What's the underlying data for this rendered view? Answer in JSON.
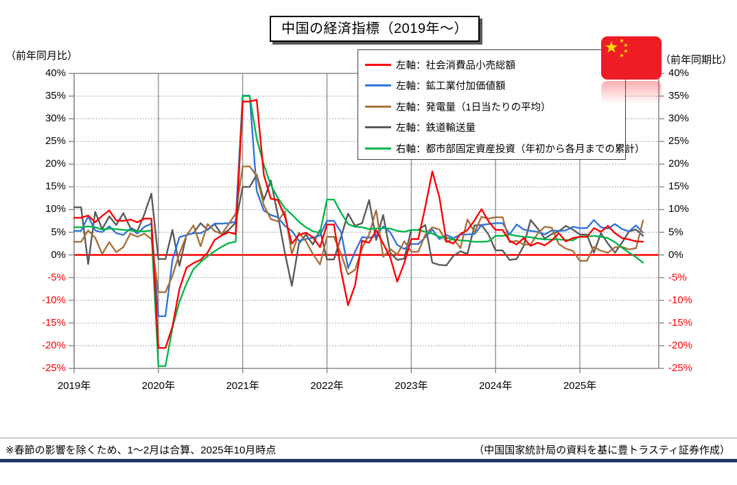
{
  "title": "中国の経済指標（2019年～）",
  "left_axis_caption": "（前年同月比）",
  "right_axis_caption": "（前年同期比）",
  "footnote_left": "※春節の影響を除くため、1～2月は合算、2025年10月時点",
  "footnote_right": "（中国国家統計局の資料を基に豊トラスティ証券作成）",
  "colors": {
    "zero_line": "#FF0000",
    "negative_tick_label": "#FF0000",
    "grid": "#888888",
    "frame": "#7F7F7F",
    "footer_accent": "#1F3864",
    "flag_red": "#EE1C25",
    "flag_star": "#FFDE00"
  },
  "legend": {
    "items": [
      {
        "label": "左軸：社会消費品小売総額",
        "color": "#FF0000"
      },
      {
        "label": "左軸：鉱工業付加価値額",
        "color": "#2F75DB"
      },
      {
        "label": "左軸：発電量（1日当たりの平均）",
        "color": "#A8703C"
      },
      {
        "label": "左軸：鉄道輸送量",
        "color": "#5A5A5A"
      },
      {
        "label": "右軸：都市部固定資産投資（年初から各月までの累計）",
        "color": "#00B64A"
      }
    ]
  },
  "chart_data": {
    "type": "line",
    "title": "中国の経済指標（2019年～）",
    "x_tick_labels": [
      "2019年",
      "2020年",
      "2021年",
      "2022年",
      "2023年",
      "2024年",
      "2025年"
    ],
    "y_tick_labels": [
      "40%",
      "35%",
      "30%",
      "25%",
      "20%",
      "15%",
      "10%",
      "5%",
      "0%",
      "-5%",
      "-10%",
      "-15%",
      "-20%",
      "-25%"
    ],
    "ylim": [
      -25,
      40
    ],
    "y_step": 5,
    "months_per_year": 12,
    "jan_feb_combined": true,
    "x_range_note": "monthly 2019-01 through 2025-10, Jan=Feb plotted with combined value",
    "grid": "horizontal dotted, vertical solid per year, zero line solid red",
    "legend_position": "top-right box",
    "series": [
      {
        "name": "社会消費品小売総額",
        "axis": "left",
        "color": "#FF0000",
        "values": [
          8.2,
          8.2,
          8.7,
          7.2,
          8.6,
          9.8,
          7.6,
          7.5,
          7.8,
          7.2,
          8.0,
          8.0,
          -20.5,
          -20.5,
          -15.8,
          -7.5,
          -2.8,
          -1.8,
          -1.1,
          0.5,
          3.3,
          4.3,
          5.0,
          4.6,
          33.8,
          33.8,
          34.2,
          17.7,
          12.4,
          12.1,
          8.5,
          2.5,
          4.4,
          4.9,
          3.9,
          1.7,
          6.7,
          6.7,
          -3.5,
          -11.1,
          -6.7,
          3.1,
          2.7,
          5.4,
          2.5,
          -0.5,
          -5.9,
          -1.8,
          3.5,
          3.5,
          10.6,
          18.4,
          12.7,
          3.1,
          2.5,
          4.6,
          5.5,
          7.6,
          10.1,
          7.4,
          5.5,
          5.5,
          3.1,
          2.3,
          3.7,
          2.0,
          2.7,
          2.1,
          3.2,
          4.8,
          3.0,
          3.7,
          4.0,
          4.0,
          5.9,
          5.1,
          6.4,
          4.8,
          3.7,
          3.4,
          3.0,
          2.9
        ]
      },
      {
        "name": "鉱工業付加価値額",
        "axis": "left",
        "color": "#2F75DB",
        "values": [
          5.3,
          5.3,
          8.5,
          5.4,
          5.0,
          6.3,
          4.8,
          4.4,
          5.8,
          4.7,
          6.2,
          6.9,
          -13.5,
          -13.5,
          -1.1,
          3.9,
          4.4,
          4.8,
          4.8,
          5.6,
          6.9,
          6.9,
          7.0,
          7.3,
          35.1,
          35.1,
          14.1,
          9.8,
          8.8,
          8.3,
          6.4,
          5.3,
          3.1,
          3.5,
          3.8,
          4.3,
          7.5,
          7.5,
          5.0,
          -2.9,
          0.7,
          3.9,
          3.8,
          4.2,
          6.3,
          5.0,
          2.2,
          1.3,
          2.4,
          2.4,
          3.9,
          5.6,
          3.5,
          4.4,
          3.7,
          4.5,
          4.5,
          4.6,
          6.6,
          6.8,
          7.0,
          7.0,
          4.5,
          6.7,
          5.6,
          5.3,
          5.1,
          4.5,
          5.4,
          5.3,
          5.4,
          6.2,
          5.9,
          5.9,
          7.7,
          6.1,
          5.8,
          6.8,
          5.7,
          5.2,
          6.5,
          4.9
        ]
      },
      {
        "name": "発電量（1日当たりの平均）",
        "axis": "left",
        "color": "#A8703C",
        "values": [
          2.9,
          2.9,
          5.4,
          3.8,
          0.2,
          2.8,
          0.6,
          1.7,
          4.7,
          4.0,
          4.7,
          3.5,
          -8.2,
          -8.2,
          -4.6,
          0.3,
          4.3,
          6.5,
          1.9,
          6.8,
          5.3,
          4.6,
          6.8,
          9.1,
          19.5,
          19.5,
          17.4,
          11.0,
          7.9,
          7.4,
          9.6,
          0.2,
          4.9,
          3.0,
          0.2,
          -2.1,
          4.0,
          4.0,
          0.2,
          -4.3,
          -3.3,
          1.5,
          4.5,
          9.9,
          -0.4,
          1.3,
          0.1,
          3.0,
          0.7,
          0.7,
          4.5,
          6.1,
          5.6,
          2.8,
          3.6,
          1.5,
          7.8,
          5.0,
          8.4,
          8.0,
          8.3,
          8.3,
          2.8,
          3.1,
          2.3,
          2.3,
          4.7,
          6.2,
          6.0,
          2.4,
          1.4,
          0.9,
          -1.3,
          -1.3,
          1.8,
          0.9,
          0.5,
          1.7,
          1.8,
          1.2,
          1.5,
          7.6
        ]
      },
      {
        "name": "鉄道輸送量",
        "axis": "left",
        "color": "#5A5A5A",
        "values": [
          10.5,
          10.5,
          -2.0,
          9.5,
          5.7,
          8.5,
          6.6,
          9.2,
          6.0,
          5.2,
          9.0,
          13.5,
          -0.9,
          -0.9,
          5.5,
          -2.4,
          4.4,
          4.8,
          7.0,
          5.5,
          6.8,
          4.5,
          5.5,
          7.1,
          15.0,
          15.0,
          17.7,
          12.1,
          16.4,
          8.9,
          0.5,
          -6.8,
          2.5,
          4.5,
          2.3,
          5.5,
          -1.0,
          -1.0,
          4.0,
          9.1,
          6.4,
          7.0,
          12.1,
          3.3,
          8.8,
          0.5,
          -1.1,
          -0.8,
          5.5,
          5.5,
          6.6,
          -1.7,
          -2.2,
          -2.3,
          -0.2,
          0.8,
          0.2,
          6.5,
          6.6,
          4.5,
          1.0,
          1.0,
          -1.1,
          -0.9,
          2.0,
          7.7,
          5.8,
          3.6,
          4.6,
          5.2,
          6.4,
          5.6,
          4.5,
          4.5,
          0.5,
          4.8,
          2.5,
          0.5,
          2.7,
          5.2,
          5.6,
          4.2
        ]
      },
      {
        "name": "都市部固定資産投資（年初から各月までの累計）",
        "axis": "right",
        "color": "#00B64A",
        "values": [
          6.1,
          6.1,
          6.3,
          6.1,
          5.6,
          5.8,
          5.7,
          5.5,
          5.4,
          5.2,
          5.2,
          5.4,
          -24.5,
          -24.5,
          -16.1,
          -10.3,
          -6.3,
          -3.1,
          -1.6,
          -0.3,
          0.8,
          1.8,
          2.6,
          2.9,
          35.0,
          35.0,
          25.6,
          19.9,
          15.4,
          12.6,
          10.3,
          8.9,
          7.3,
          6.1,
          5.2,
          4.9,
          12.2,
          12.2,
          9.3,
          6.8,
          6.2,
          6.1,
          5.7,
          5.8,
          5.9,
          5.8,
          5.3,
          5.1,
          5.5,
          5.5,
          5.1,
          4.7,
          4.0,
          3.8,
          3.4,
          3.2,
          3.1,
          2.9,
          2.9,
          3.0,
          4.2,
          4.2,
          4.5,
          4.2,
          4.0,
          3.9,
          3.6,
          3.4,
          3.4,
          3.4,
          3.3,
          3.2,
          4.1,
          4.1,
          4.2,
          4.0,
          3.7,
          2.8,
          1.6,
          0.5,
          -0.5,
          -1.7
        ]
      }
    ]
  }
}
